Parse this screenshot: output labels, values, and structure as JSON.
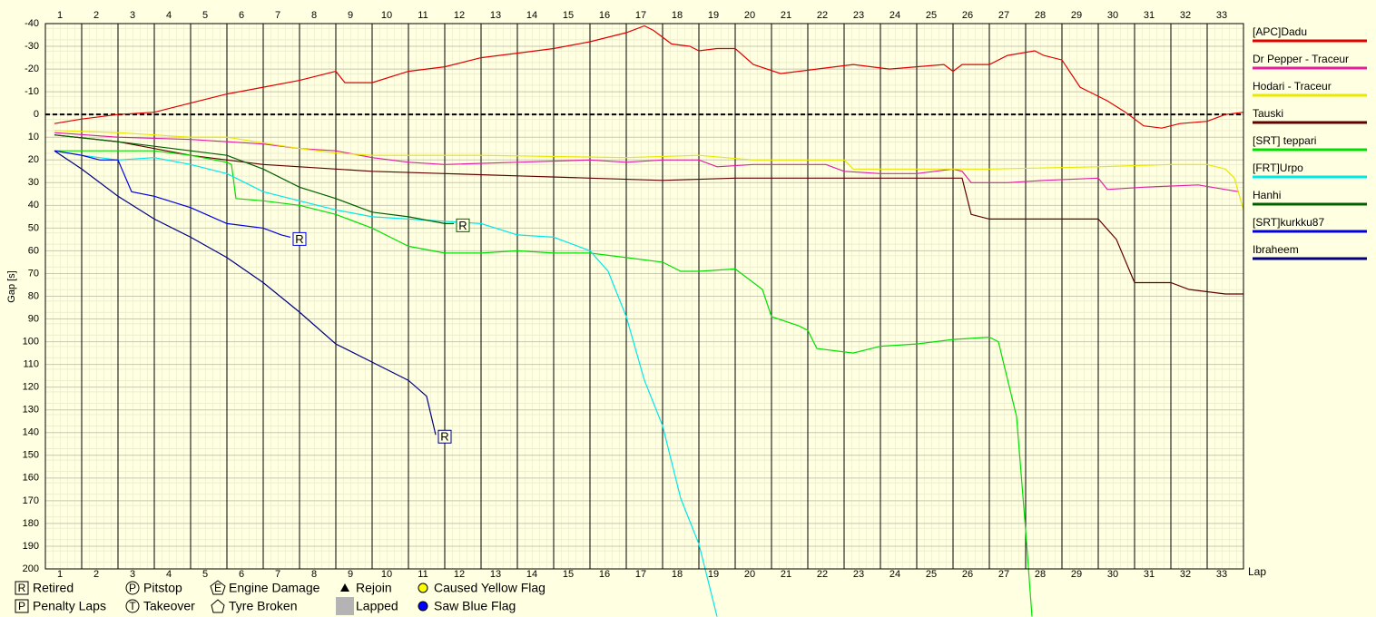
{
  "chart_data": {
    "type": "line",
    "y_axis_label": "Gap [s]",
    "x_axis_label": "Lap",
    "laps": [
      1,
      2,
      3,
      4,
      5,
      6,
      7,
      8,
      9,
      10,
      11,
      12,
      13,
      14,
      15,
      16,
      17,
      18,
      19,
      20,
      21,
      22,
      23,
      24,
      25,
      26,
      27,
      28,
      29,
      30,
      31,
      32,
      33
    ],
    "xlim": [
      0,
      33
    ],
    "ylim": [
      -40,
      200
    ],
    "y_inverted": true,
    "yticks": [
      -40,
      -30,
      -20,
      -10,
      0,
      10,
      20,
      30,
      40,
      50,
      60,
      70,
      80,
      90,
      100,
      110,
      120,
      130,
      140,
      150,
      160,
      170,
      180,
      190,
      200
    ],
    "zero_line": true,
    "grid": true,
    "legend": "right",
    "series": [
      {
        "name": "[APC]Dadu",
        "color": "#e00000",
        "x": [
          0.25,
          1,
          2,
          3,
          4,
          5,
          6,
          7,
          8,
          8.25,
          9,
          10,
          11,
          12,
          13,
          14,
          15,
          16,
          16.5,
          16.75,
          17.25,
          17.75,
          18,
          18.5,
          19,
          19.5,
          20.25,
          21.25,
          22.25,
          23.25,
          24,
          24.75,
          25,
          25.25,
          26,
          26.5,
          27.25,
          27.5,
          28,
          28.5,
          28.75,
          29.25,
          29.75,
          30.25,
          30.75,
          31.25,
          32,
          32.5,
          33
        ],
        "values": [
          4,
          2,
          0,
          -1,
          -5,
          -9,
          -12,
          -15,
          -19,
          -14,
          -14,
          -19,
          -21,
          -25,
          -27,
          -29,
          -32,
          -36,
          -39,
          -37,
          -31,
          -30,
          -28,
          -29,
          -29,
          -22,
          -18,
          -20,
          -22,
          -20,
          -21,
          -22,
          -19,
          -22,
          -22,
          -26,
          -28,
          -26,
          -24,
          -12,
          -10,
          -6,
          -1,
          5,
          6,
          4,
          3,
          0,
          -1
        ]
      },
      {
        "name": "Dr Pepper - Traceur",
        "color": "#e020a0",
        "x": [
          0.25,
          2,
          4,
          5,
          6,
          7,
          8,
          9,
          10,
          11,
          13,
          15,
          16,
          17,
          18,
          18.5,
          19.5,
          20.5,
          21.5,
          22,
          23,
          24,
          25,
          25.25,
          25.5,
          26.5,
          27.5,
          29,
          29.25,
          30.25,
          31.75,
          32.5,
          32.875
        ],
        "values": [
          8,
          10,
          11,
          12,
          13,
          15,
          16,
          19,
          21,
          22,
          21,
          20,
          21,
          20,
          20,
          23,
          22,
          22,
          22,
          25,
          26,
          26,
          24,
          25,
          30,
          30,
          29,
          28,
          33,
          32,
          31,
          33,
          34
        ]
      },
      {
        "name": "Hodari - Traceur",
        "color": "#e8e800",
        "x": [
          0.25,
          2,
          4,
          5,
          7,
          8,
          9,
          10,
          12,
          16,
          18,
          19.5,
          22,
          22.25,
          25,
          26,
          29,
          31,
          32,
          32.5,
          32.75,
          33
        ],
        "values": [
          7,
          8,
          10,
          10,
          15,
          17,
          18,
          18,
          18,
          19,
          18,
          20,
          20,
          24,
          24,
          24,
          23,
          22,
          22,
          24,
          28,
          42
        ]
      },
      {
        "name": "Tauski",
        "color": "#600000",
        "x": [
          0.25,
          2,
          4,
          5,
          6,
          7,
          9,
          11,
          13,
          15,
          17,
          19,
          21,
          23,
          25,
          25.25,
          25.5,
          26,
          28,
          29,
          29.5,
          30,
          31,
          31.5,
          32,
          32.5,
          33
        ],
        "values": [
          9,
          12,
          18,
          20,
          22,
          23,
          25,
          26,
          27,
          28,
          29,
          28,
          28,
          28,
          28,
          28,
          44,
          46,
          46,
          46,
          55,
          74,
          74,
          77,
          78,
          79,
          79
        ]
      },
      {
        "name": "[SRT] teppari",
        "color": "#00e000",
        "x": [
          0.25,
          2,
          3,
          4,
          5,
          5.125,
          5.25,
          6,
          7,
          8,
          9,
          9.5,
          10,
          11,
          12,
          13,
          14,
          15,
          16,
          17,
          17.5,
          18,
          19,
          19.75,
          20,
          20.75,
          21,
          21.25,
          22.25,
          23,
          24,
          25,
          26,
          26.25,
          26.75,
          27,
          27.175
        ],
        "values": [
          16,
          16,
          16,
          18,
          21,
          22,
          37,
          38,
          40,
          44,
          50,
          54,
          58,
          61,
          61,
          60,
          61,
          61,
          63,
          65,
          69,
          69,
          68,
          77,
          89,
          93,
          95,
          103,
          105,
          102,
          101,
          99,
          98,
          100,
          133,
          183,
          221
        ]
      },
      {
        "name": "[FRT]Urpo",
        "color": "#00e8e8",
        "x": [
          0.25,
          1,
          2,
          3,
          4,
          5,
          6,
          7,
          8,
          9,
          10,
          11,
          12,
          13,
          14,
          15,
          15.5,
          16,
          16.5,
          17,
          17.5,
          18,
          18.5
        ],
        "values": [
          16,
          18,
          20,
          19,
          22,
          26,
          34,
          38,
          42,
          45,
          46,
          47,
          48,
          53,
          54,
          60,
          69,
          89,
          117,
          137,
          169,
          189,
          221
        ]
      },
      {
        "name": "Hanhi",
        "color": "#006000",
        "marker": "R",
        "x": [
          0.25,
          2,
          4,
          5,
          6,
          7,
          8,
          9,
          10,
          11,
          11.25
        ],
        "values": [
          9,
          12,
          16,
          18,
          24,
          32,
          37,
          43,
          45,
          48,
          48
        ]
      },
      {
        "name": "[SRT]kurkku87",
        "color": "#0000e0",
        "marker": "R",
        "x": [
          0.25,
          1,
          1.5,
          2,
          2.375,
          3,
          4,
          5,
          6,
          6.5,
          6.75
        ],
        "values": [
          16,
          18,
          20,
          20,
          34,
          36,
          41,
          48,
          50,
          53,
          54
        ]
      },
      {
        "name": "Ibraheem",
        "color": "#000080",
        "marker": "R",
        "x": [
          0.25,
          1,
          2,
          3,
          4,
          5,
          6,
          7,
          8,
          9,
          10,
          10.5,
          10.75
        ],
        "values": [
          16,
          24,
          36,
          46,
          54,
          63,
          74,
          87,
          101,
          109,
          117,
          124,
          141
        ]
      }
    ],
    "key": [
      {
        "symbol": "R",
        "label": "Retired"
      },
      {
        "symbol": "P",
        "label": "Pitstop"
      },
      {
        "symbol": "E",
        "label": "Engine Damage"
      },
      {
        "label": "Rejoin"
      },
      {
        "label": "Caused Yellow Flag"
      },
      {
        "symbol": "P",
        "label": "Penalty Laps"
      },
      {
        "symbol": "T",
        "label": "Takeover"
      },
      {
        "label": "Tyre Broken"
      },
      {
        "label": "Lapped"
      },
      {
        "label": "Saw Blue Flag"
      }
    ]
  }
}
